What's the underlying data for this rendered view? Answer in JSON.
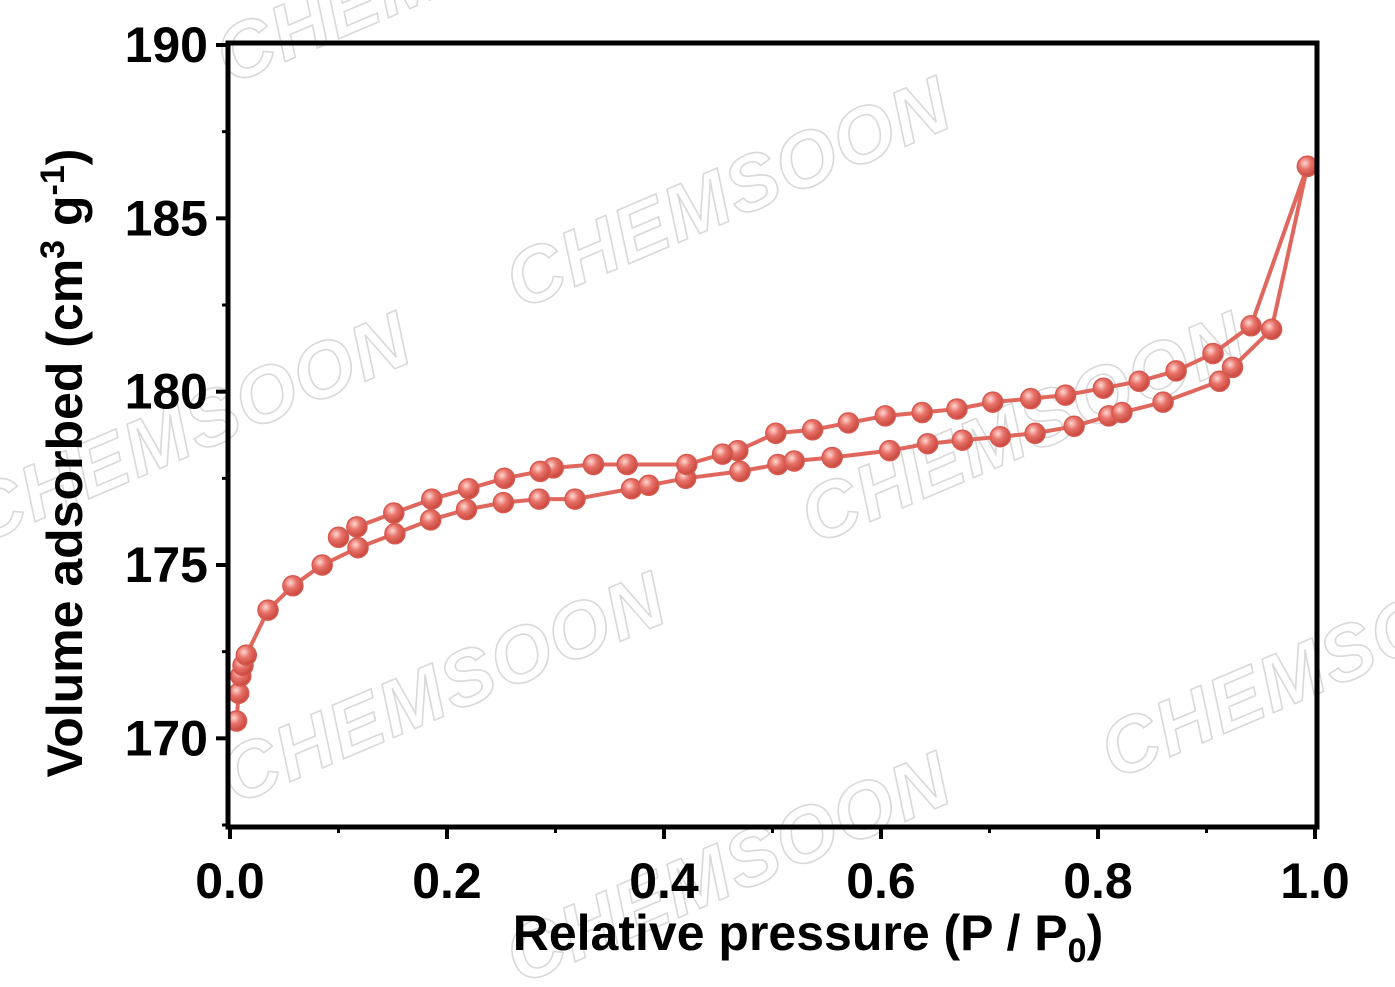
{
  "chart_data": {
    "type": "line",
    "xlabel": "Relative pressure (P / P0)",
    "ylabel": "Volume adsorbed (cm3 g-1)",
    "xlim": [
      0.0,
      1.0
    ],
    "ylim": [
      167.5,
      190
    ],
    "x_ticks": [
      "0.0",
      "0.2",
      "0.4",
      "0.6",
      "0.8",
      "1.0"
    ],
    "y_ticks": [
      "170",
      "175",
      "180",
      "185",
      "190"
    ],
    "line_color": "#e0675d",
    "marker_color": "#e8736a",
    "grid": false,
    "legend": "none",
    "series": [
      {
        "x": [
          0.006,
          0.008,
          0.01,
          0.012,
          0.015,
          0.035,
          0.058,
          0.085,
          0.118,
          0.152,
          0.185,
          0.218,
          0.252,
          0.285,
          0.318,
          0.37,
          0.386,
          0.42,
          0.47,
          0.505,
          0.52,
          0.555,
          0.608,
          0.643,
          0.675,
          0.71,
          0.742,
          0.778,
          0.81,
          0.822,
          0.86,
          0.912,
          0.924,
          0.96,
          0.993
        ],
        "values": [
          170.5,
          171.3,
          171.8,
          172.1,
          172.4,
          173.7,
          174.4,
          175.0,
          175.5,
          175.9,
          176.3,
          176.6,
          176.8,
          176.9,
          176.9,
          177.2,
          177.3,
          177.5,
          177.7,
          177.9,
          178.0,
          178.1,
          178.3,
          178.5,
          178.6,
          178.7,
          178.8,
          179.0,
          179.3,
          179.4,
          179.7,
          180.3,
          180.7,
          181.8,
          186.5
        ]
      },
      {
        "x": [
          0.993,
          0.941,
          0.906,
          0.872,
          0.838,
          0.805,
          0.77,
          0.738,
          0.703,
          0.67,
          0.638,
          0.604,
          0.57,
          0.537,
          0.503,
          0.468,
          0.454,
          0.421,
          0.366,
          0.335,
          0.298,
          0.286,
          0.253,
          0.22,
          0.186,
          0.151,
          0.117,
          0.1
        ],
        "values": [
          186.5,
          181.9,
          181.1,
          180.6,
          180.3,
          180.1,
          179.9,
          179.8,
          179.7,
          179.5,
          179.4,
          179.3,
          179.1,
          178.9,
          178.8,
          178.3,
          178.2,
          177.9,
          177.9,
          177.9,
          177.8,
          177.7,
          177.5,
          177.2,
          176.9,
          176.5,
          176.1,
          175.8
        ]
      }
    ]
  },
  "watermarks": [
    "CHEMSOON",
    "CHEMSOON",
    "CHEMSOON",
    "CHEMSOON",
    "CHEMSOON",
    "CHEMSOON",
    "CHEMSOON"
  ]
}
